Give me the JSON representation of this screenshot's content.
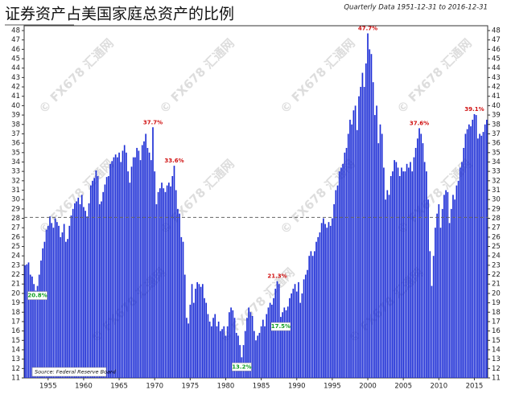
{
  "chart_data": {
    "type": "bar",
    "title": "证券资产占美国家庭总资产的比例",
    "subtitle": "Quarterly Data 1951-12-31 to 2016-12-31",
    "source": "Source: Federal Reserve Board",
    "watermark": "© FX678 汇通网",
    "color": "#1d2ed6",
    "ylim": [
      11,
      48
    ],
    "yticks": [
      11,
      12,
      13,
      14,
      15,
      16,
      17,
      18,
      19,
      20,
      21,
      22,
      23,
      24,
      25,
      26,
      27,
      28,
      29,
      30,
      31,
      32,
      33,
      34,
      35,
      36,
      37,
      38,
      39,
      40,
      41,
      42,
      43,
      44,
      45,
      46,
      47,
      48
    ],
    "reference_line": 28.1,
    "categories": [
      null,
      null,
      null,
      null,
      null,
      null,
      null,
      null,
      null,
      null,
      null,
      null,
      null,
      "1955",
      null,
      null,
      null,
      null,
      null,
      null,
      null,
      null,
      null,
      null,
      null,
      null,
      null,
      null,
      null,
      null,
      null,
      null,
      null,
      "1960",
      null,
      null,
      null,
      null,
      null,
      null,
      null,
      null,
      null,
      null,
      null,
      null,
      null,
      null,
      null,
      null,
      null,
      null,
      null,
      "1965",
      null,
      null,
      null,
      null,
      null,
      null,
      null,
      null,
      null,
      null,
      null,
      null,
      null,
      null,
      null,
      null,
      null,
      null,
      null,
      "1970",
      null,
      null,
      null,
      null,
      null,
      null,
      null,
      null,
      null,
      null,
      null,
      null,
      null,
      null,
      null,
      null,
      null,
      null,
      null,
      "1975",
      null,
      null,
      null,
      null,
      null,
      null,
      null,
      null,
      null,
      null,
      null,
      null,
      null,
      null,
      null,
      null,
      null,
      null,
      null,
      "1980",
      null,
      null,
      null,
      null,
      null,
      null,
      null,
      null,
      null,
      null,
      null,
      null,
      null,
      null,
      null,
      null,
      null,
      null,
      null,
      "1985",
      null,
      null,
      null,
      null,
      null,
      null,
      null,
      null,
      null,
      null,
      null,
      null,
      null,
      null,
      null,
      null,
      null,
      null,
      null,
      "1990",
      null,
      null,
      null,
      null,
      null,
      null,
      null,
      null,
      null,
      null,
      null,
      null,
      null,
      null,
      null,
      null,
      null,
      null,
      null,
      "1995",
      null,
      null,
      null,
      null,
      null,
      null,
      null,
      null,
      null,
      null,
      null,
      null,
      null,
      null,
      null,
      null,
      null,
      null,
      null,
      "2000",
      null,
      null,
      null,
      null,
      null,
      null,
      null,
      null,
      null,
      null,
      null,
      null,
      null,
      null,
      null,
      null,
      null,
      null,
      null,
      "2005",
      null,
      null,
      null,
      null,
      null,
      null,
      null,
      null,
      null,
      null,
      null,
      null,
      null,
      null,
      null,
      null,
      null,
      null,
      null,
      "2010",
      null,
      null,
      null,
      null,
      null,
      null,
      null,
      null,
      null,
      null,
      null,
      null,
      null,
      null,
      null,
      null,
      null,
      null,
      null,
      "2015",
      null,
      null,
      null,
      null,
      null,
      null,
      null
    ],
    "values": [
      23.0,
      23.1,
      23.3,
      22.0,
      21.8,
      21.0,
      20.3,
      20.8,
      22.0,
      23.5,
      24.8,
      25.5,
      26.8,
      27.2,
      28.2,
      27.5,
      27.0,
      28.0,
      27.6,
      27.2,
      26.0,
      26.5,
      27.4,
      25.5,
      25.8,
      27.2,
      28.3,
      29.0,
      29.6,
      29.8,
      30.2,
      29.5,
      30.5,
      29.2,
      28.8,
      28.2,
      29.6,
      31.5,
      32.0,
      32.3,
      33.1,
      32.5,
      29.5,
      29.8,
      30.8,
      31.6,
      32.4,
      32.5,
      33.8,
      34.1,
      34.5,
      34.8,
      34.5,
      35.0,
      34.0,
      35.2,
      35.8,
      35.0,
      33.0,
      31.8,
      33.5,
      34.5,
      34.5,
      35.5,
      35.2,
      34.2,
      35.8,
      36.2,
      37.0,
      35.5,
      35.0,
      34.2,
      37.7,
      33.0,
      29.5,
      30.8,
      31.2,
      31.8,
      31.2,
      30.8,
      31.5,
      31.8,
      31.4,
      32.5,
      33.6,
      31.0,
      29.0,
      28.5,
      26.0,
      25.5,
      22.0,
      17.4,
      16.8,
      18.8,
      21.0,
      19.0,
      20.5,
      21.2,
      21.0,
      20.7,
      21.0,
      19.5,
      19.0,
      17.8,
      17.0,
      16.5,
      17.4,
      17.8,
      16.5,
      17.0,
      16.0,
      16.2,
      16.5,
      15.5,
      16.5,
      18.0,
      18.5,
      18.2,
      17.4,
      15.8,
      15.5,
      14.5,
      13.2,
      14.5,
      16.0,
      17.4,
      18.5,
      18.0,
      17.6,
      16.0,
      15.0,
      15.5,
      15.8,
      16.5,
      17.2,
      16.5,
      17.8,
      18.5,
      19.0,
      18.8,
      19.5,
      20.5,
      21.3,
      21.0,
      17.5,
      18.0,
      18.5,
      18.2,
      18.6,
      19.5,
      20.0,
      20.5,
      21.0,
      20.2,
      21.2,
      19.0,
      20.0,
      21.5,
      22.0,
      22.5,
      24.0,
      24.5,
      24.0,
      24.5,
      25.5,
      26.0,
      26.5,
      27.5,
      28.0,
      27.4,
      27.0,
      27.6,
      27.2,
      28.0,
      29.5,
      31.0,
      31.5,
      33.0,
      33.4,
      33.8,
      35.0,
      35.5,
      37.0,
      38.5,
      38.0,
      39.5,
      40.0,
      37.4,
      41.0,
      42.0,
      43.5,
      42.0,
      44.5,
      47.7,
      46.0,
      45.5,
      42.5,
      39.0,
      40.0,
      36.0,
      38.0,
      37.0,
      33.4,
      30.0,
      31.0,
      30.5,
      32.5,
      33.0,
      34.2,
      34.0,
      33.4,
      32.5,
      33.4,
      33.0,
      33.0,
      33.8,
      33.4,
      34.0,
      33.0,
      34.5,
      35.5,
      36.5,
      37.6,
      37.0,
      36.0,
      34.0,
      33.0,
      30.0,
      24.5,
      20.8,
      24.0,
      27.0,
      28.5,
      29.5,
      27.0,
      29.0,
      30.5,
      31.0,
      30.8,
      27.5,
      29.0,
      30.5,
      30.0,
      31.5,
      32.0,
      33.4,
      34.0,
      35.5,
      37.0,
      37.5,
      38.0,
      37.8,
      38.5,
      39.1,
      39.0,
      36.5,
      37.0,
      36.8,
      37.2,
      38.0,
      38.5
    ],
    "annotations": [
      {
        "label": "37.7%",
        "value": 37.7,
        "color": "#d01010"
      },
      {
        "label": "33.6%",
        "value": 33.6,
        "color": "#d01010"
      },
      {
        "label": "13.2%",
        "value": 13.2,
        "color": "#12a024"
      },
      {
        "label": "21.3%",
        "value": 21.3,
        "color": "#d01010"
      },
      {
        "label": "17.5%",
        "value": 17.5,
        "color": "#12a024"
      },
      {
        "label": "47.7%",
        "value": 47.7,
        "color": "#d01010"
      },
      {
        "label": "37.6%",
        "value": 37.6,
        "color": "#d01010"
      },
      {
        "label": "20.8%",
        "value": 20.8,
        "color": "#12a024"
      },
      {
        "label": "39.1%",
        "value": 39.1,
        "color": "#d01010"
      }
    ]
  }
}
